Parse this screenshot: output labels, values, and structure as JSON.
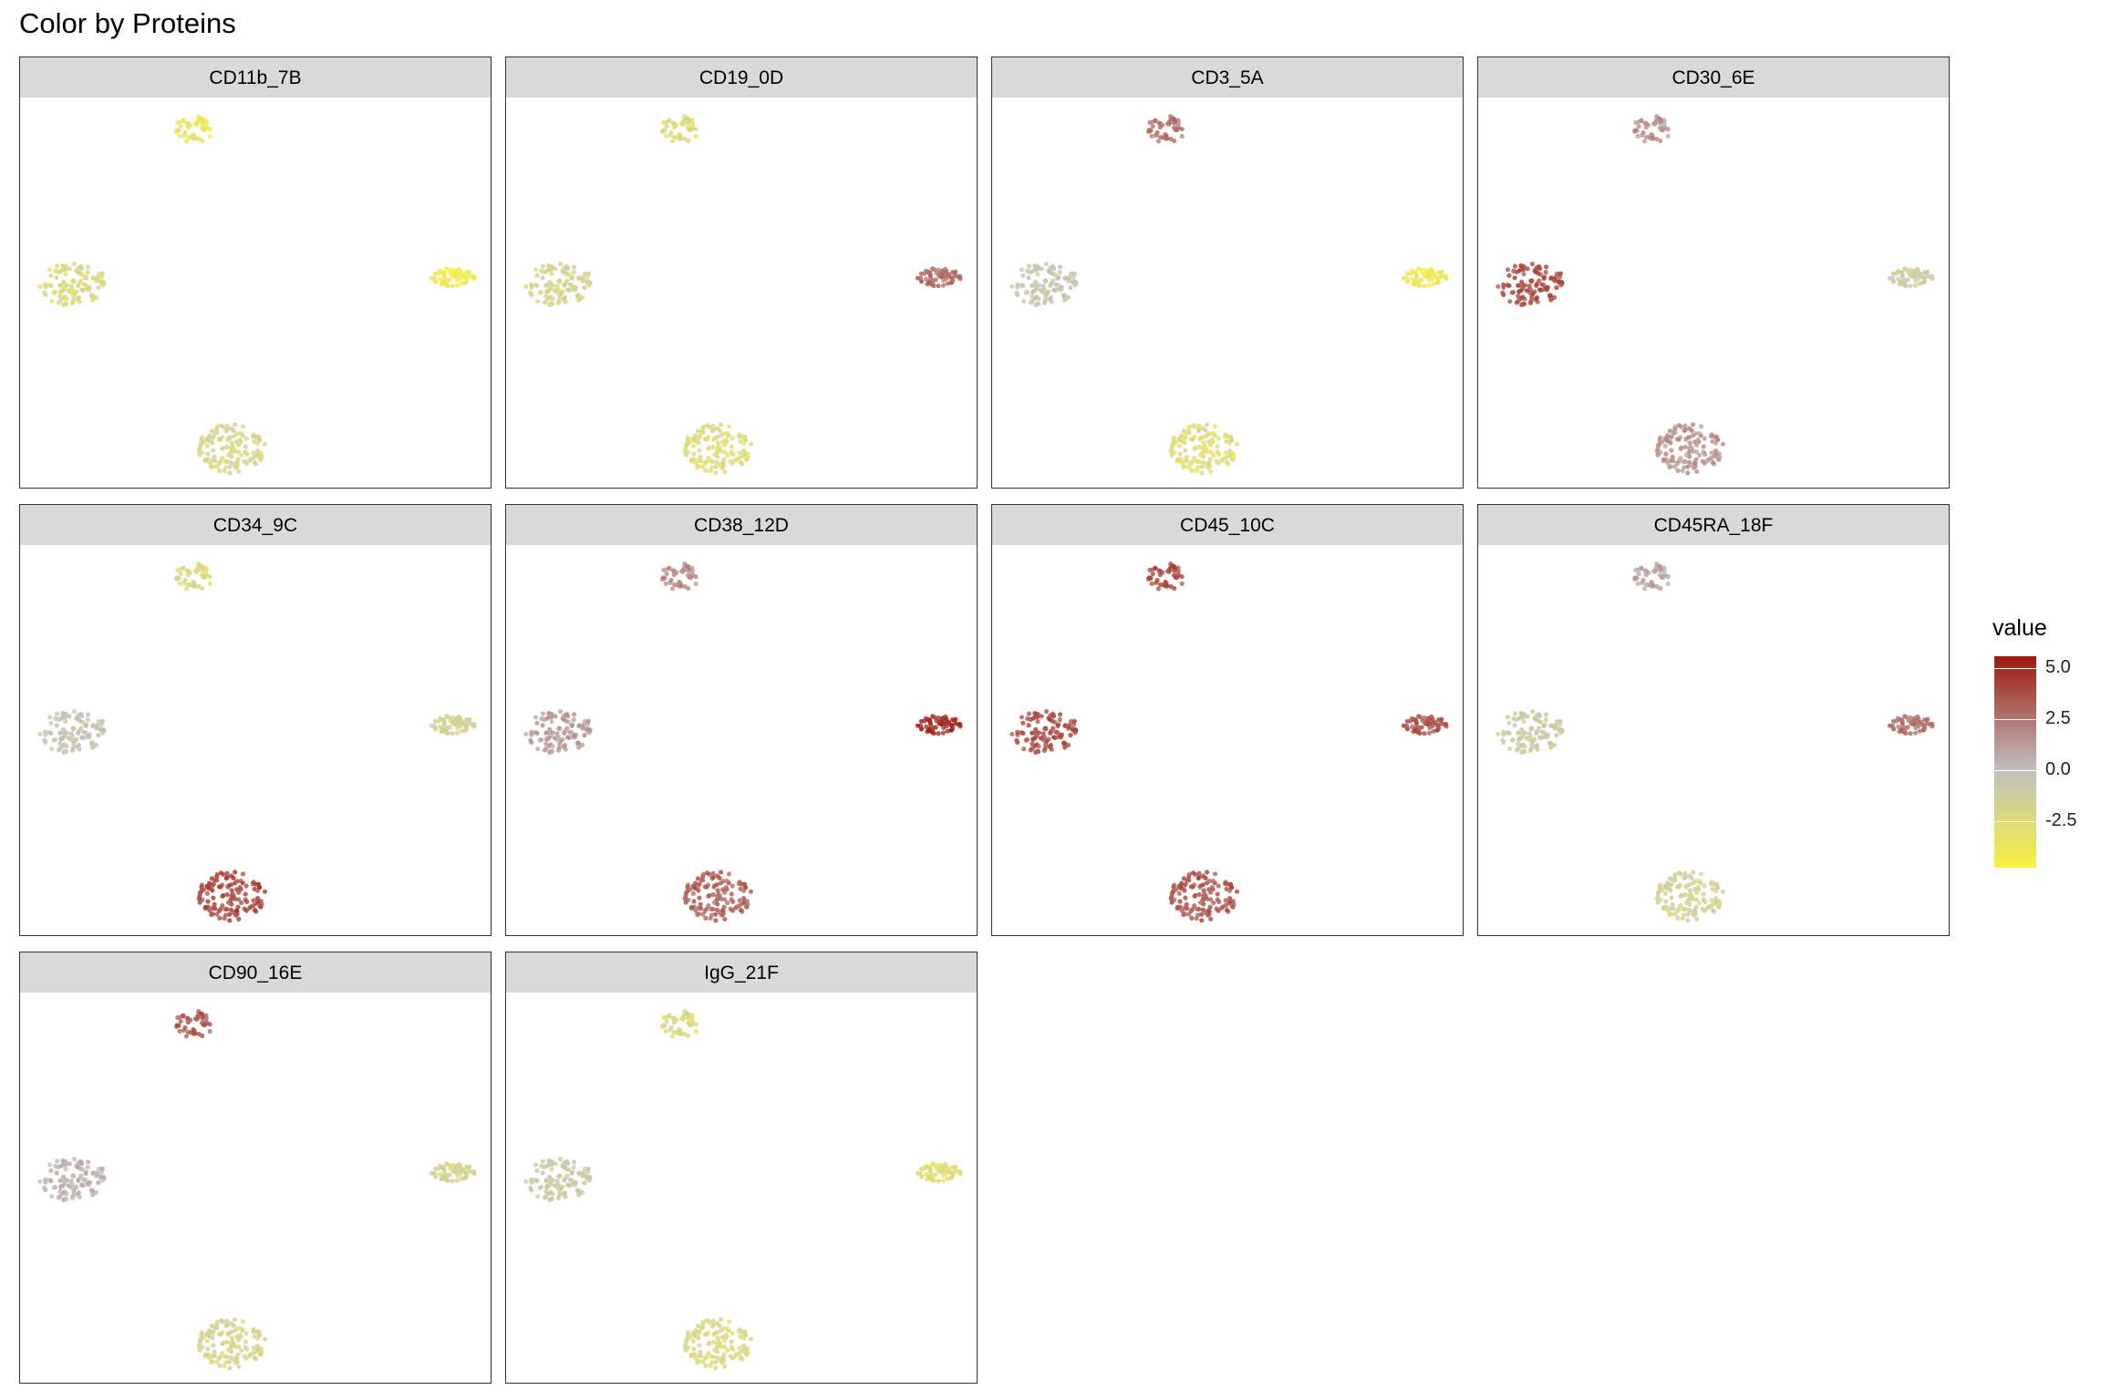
{
  "chart_data": {
    "type": "scatter",
    "title": "Color by Proteins",
    "legend": {
      "title": "value",
      "position": "right",
      "ticks": [
        5.0,
        2.5,
        0.0,
        -2.5
      ],
      "tick_labels": [
        "5.0",
        "2.5",
        "0.0",
        "-2.5"
      ],
      "range": [
        -4.8,
        5.6
      ],
      "colors": {
        "low": "#f7f13f",
        "mid": "#c0c0c0",
        "high": "#9e1a0e"
      }
    },
    "clusters": [
      "top",
      "left",
      "right",
      "bottom"
    ],
    "panels": [
      {
        "label": "CD11b_7B",
        "cluster_values": {
          "top": -3.8,
          "left": -2.4,
          "right": -4.3,
          "bottom": -2.0
        }
      },
      {
        "label": "CD19_0D",
        "cluster_values": {
          "top": -2.6,
          "left": -1.9,
          "right": 2.8,
          "bottom": -2.6
        }
      },
      {
        "label": "CD3_5A",
        "cluster_values": {
          "top": 2.6,
          "left": -0.6,
          "right": -4.0,
          "bottom": -2.8
        }
      },
      {
        "label": "CD30_6E",
        "cluster_values": {
          "top": 1.5,
          "left": 3.9,
          "right": -1.2,
          "bottom": 1.6
        }
      },
      {
        "label": "CD34_9C",
        "cluster_values": {
          "top": -2.4,
          "left": -0.5,
          "right": -1.7,
          "bottom": 4.2
        }
      },
      {
        "label": "CD38_12D",
        "cluster_values": {
          "top": 1.7,
          "left": 1.2,
          "right": 5.0,
          "bottom": 3.3
        }
      },
      {
        "label": "CD45_10C",
        "cluster_values": {
          "top": 3.9,
          "left": 3.8,
          "right": 3.6,
          "bottom": 3.7
        }
      },
      {
        "label": "CD45RA_18F",
        "cluster_values": {
          "top": 0.9,
          "left": -1.0,
          "right": 2.6,
          "bottom": -1.6
        }
      },
      {
        "label": "CD90_16E",
        "cluster_values": {
          "top": 3.4,
          "left": 0.4,
          "right": -1.8,
          "bottom": -1.9
        }
      },
      {
        "label": "IgG_21F",
        "cluster_values": {
          "top": -2.4,
          "left": -0.9,
          "right": -2.9,
          "bottom": -2.3
        }
      }
    ],
    "grid": false,
    "axes_visible": false
  }
}
